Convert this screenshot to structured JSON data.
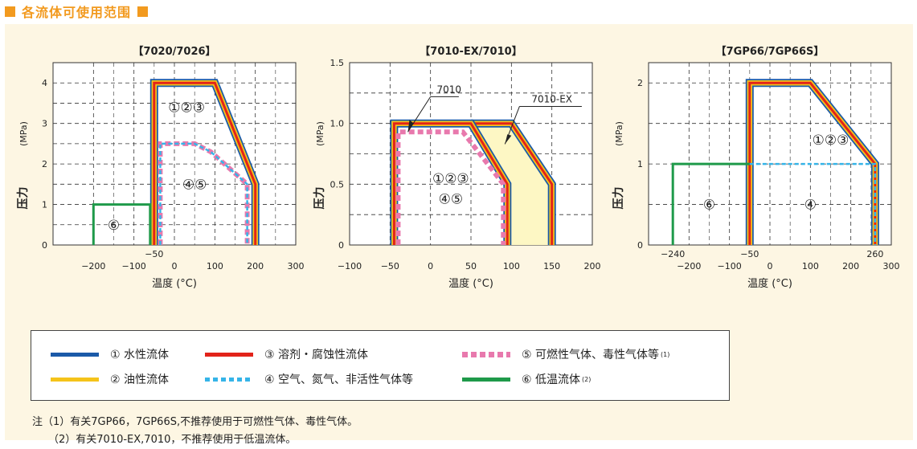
{
  "header": {
    "title": "各流体可使用范围"
  },
  "colors": {
    "water": "#1b5aa8",
    "oil": "#f5c31a",
    "solvent": "#e2231a",
    "air": "#35b4e8",
    "gas": "#e879ad",
    "lowtemp": "#1f9a4a",
    "accent": "#f29a1f",
    "panel_bg": "#fdf6e3",
    "highlight": "#fdf7c4"
  },
  "chart_data": [
    {
      "type": "area",
      "title": "【7020/7026】",
      "xlabel": "温度  (°C)",
      "ylabel": "压力",
      "yunit": "(MPa)",
      "xlim": [
        -300,
        300
      ],
      "ylim": [
        0,
        4.5
      ],
      "xticks": [
        -200,
        -100,
        0,
        100,
        200,
        300
      ],
      "yticks": [
        0,
        1,
        2,
        3,
        4
      ],
      "extra_xtick_labels": [
        {
          "x": -50,
          "label": "−50"
        }
      ],
      "grid": true,
      "series": [
        {
          "key": "water_oil_solvent",
          "fluids": [
            "①",
            "②",
            "③"
          ],
          "x": [
            -50,
            -50,
            100,
            200,
            200
          ],
          "y": [
            0,
            4,
            4,
            1.5,
            0
          ]
        },
        {
          "key": "air_gas",
          "fluids": [
            "④",
            "⑤"
          ],
          "x": [
            -35,
            -35,
            50,
            90,
            180,
            180
          ],
          "y": [
            0,
            2.5,
            2.5,
            2.3,
            1.5,
            0
          ]
        },
        {
          "key": "lowtemp",
          "fluids": [
            "⑥"
          ],
          "x": [
            -200,
            -200,
            -60,
            -60
          ],
          "y": [
            0,
            1,
            1,
            0
          ]
        }
      ],
      "annotations": [
        {
          "text": "①②③",
          "x": 30,
          "y": 3.4
        },
        {
          "text": "④⑤",
          "x": 50,
          "y": 1.5
        },
        {
          "text": "⑥",
          "x": -150,
          "y": 0.5
        }
      ]
    },
    {
      "type": "area",
      "title": "【7010-EX/7010】",
      "xlabel": "温度  (°C)",
      "ylabel": "压力",
      "yunit": "(MPa)",
      "xlim": [
        -100,
        200
      ],
      "ylim": [
        0,
        1.5
      ],
      "xticks": [
        -100,
        -50,
        0,
        50,
        100,
        150,
        200
      ],
      "yticks": [
        0,
        0.5,
        1.0,
        1.5
      ],
      "grid": true,
      "series": [
        {
          "key": "7010_solid",
          "fluids": [
            "①",
            "②",
            "③"
          ],
          "x": [
            -45,
            -45,
            50,
            95,
            95
          ],
          "y": [
            0,
            1.0,
            1.0,
            0.5,
            0
          ]
        },
        {
          "key": "7010ex_solid",
          "fluids": [
            "①",
            "②",
            "③"
          ],
          "x": [
            50,
            100,
            150,
            150
          ],
          "y": [
            1.0,
            1.0,
            0.5,
            0
          ]
        },
        {
          "key": "7010_gas",
          "fluids": [
            "④",
            "⑤"
          ],
          "x": [
            -40,
            -40,
            40,
            90,
            90
          ],
          "y": [
            0,
            0.93,
            0.93,
            0.5,
            0
          ]
        }
      ],
      "labels": {
        "model_a": "7010",
        "model_b": "7010-EX"
      },
      "annotations": [
        {
          "text": "①②③",
          "x": 25,
          "y": 0.55
        },
        {
          "text": "④⑤",
          "x": 25,
          "y": 0.38
        }
      ]
    },
    {
      "type": "area",
      "title": "【7GP66/7GP66S】",
      "xlabel": "温度  (°C)",
      "ylabel": "压力",
      "yunit": "(MPa)",
      "xlim": [
        -300,
        300
      ],
      "ylim": [
        0,
        2.25
      ],
      "xticks": [
        -200,
        -100,
        0,
        100,
        200,
        300
      ],
      "yticks": [
        0,
        1,
        2
      ],
      "extra_xtick_labels": [
        {
          "x": -240,
          "label": "−240"
        },
        {
          "x": -50,
          "label": "−50"
        },
        {
          "x": 260,
          "label": "260"
        }
      ],
      "grid": true,
      "series": [
        {
          "key": "water_oil_solvent",
          "fluids": [
            "①",
            "②",
            "③"
          ],
          "x": [
            -50,
            -50,
            100,
            260,
            260
          ],
          "y": [
            0,
            2,
            2,
            1,
            0
          ]
        },
        {
          "key": "air",
          "fluids": [
            "④"
          ],
          "x": [
            -50,
            260,
            260
          ],
          "y": [
            1,
            1,
            0
          ]
        },
        {
          "key": "lowtemp",
          "fluids": [
            "⑥"
          ],
          "x": [
            -240,
            -240,
            -50
          ],
          "y": [
            0,
            1,
            1
          ]
        }
      ],
      "annotations": [
        {
          "text": "①②③",
          "x": 150,
          "y": 1.3
        },
        {
          "text": "⑥",
          "x": -150,
          "y": 0.5
        },
        {
          "text": "④",
          "x": 100,
          "y": 0.5
        }
      ]
    }
  ],
  "legend": {
    "items": [
      {
        "label": "① 水性流体",
        "color": "#1b5aa8",
        "style": "solid",
        "note": ""
      },
      {
        "label": "② 油性流体",
        "color": "#f5c31a",
        "style": "solid",
        "note": ""
      },
      {
        "label": "③ 溶剂・腐蚀性流体",
        "color": "#e2231a",
        "style": "solid",
        "note": ""
      },
      {
        "label": "④ 空气、氮气、非活性气体等",
        "color": "#35b4e8",
        "style": "dashed",
        "note": ""
      },
      {
        "label": "⑤ 可燃性气体、毒性气体等",
        "color": "#e879ad",
        "style": "dashed",
        "note": "(1)"
      },
      {
        "label": "⑥ 低温流体",
        "color": "#1f9a4a",
        "style": "solid",
        "note": "(2)"
      }
    ]
  },
  "notes": {
    "note1": "注（1）有关7GP66，7GP66S,不推荐使用于可燃性气体、毒性气体。",
    "note2": "（2）有关7010-EX,7010，不推荐使用于低温流体。"
  }
}
